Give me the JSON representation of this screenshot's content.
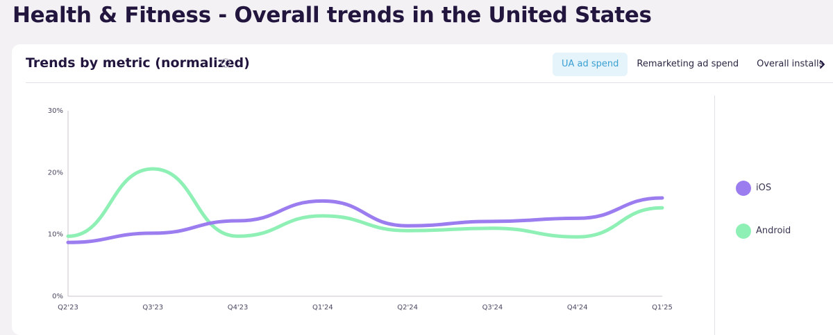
{
  "page": {
    "title": "Health & Fitness - Overall trends in the United States"
  },
  "card": {
    "title": "Trends by metric (normalized)",
    "tabs": [
      {
        "label": "UA ad spend",
        "active": true
      },
      {
        "label": "Remarketing ad spend",
        "active": false
      },
      {
        "label": "Overall installs",
        "active": false
      }
    ]
  },
  "icons": {
    "info": "info-icon",
    "next": "chevron-right-icon"
  },
  "chart_data": {
    "type": "line",
    "title": "",
    "xlabel": "",
    "ylabel": "",
    "categories": [
      "Q2'23",
      "Q3'23",
      "Q4'23",
      "Q1'24",
      "Q2'24",
      "Q3'24",
      "Q4'24",
      "Q1'25"
    ],
    "y_ticks": [
      "0%",
      "10%",
      "20%",
      "30%"
    ],
    "ylim": [
      0,
      30
    ],
    "grid": false,
    "legend_position": "right",
    "series": [
      {
        "name": "iOS",
        "color": "#9b7df0",
        "values": [
          8.7,
          10.2,
          12.2,
          15.4,
          11.4,
          12.1,
          12.6,
          15.9
        ]
      },
      {
        "name": "Android",
        "color": "#8ff0b6",
        "values": [
          9.7,
          20.6,
          9.7,
          13.0,
          10.6,
          11.0,
          9.6,
          14.3
        ]
      }
    ]
  }
}
